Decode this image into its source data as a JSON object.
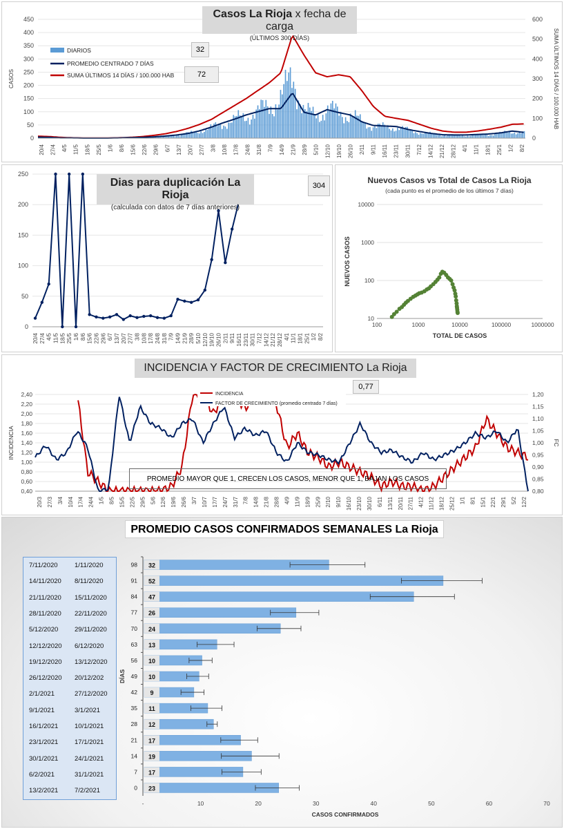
{
  "panel1": {
    "title_main": "Casos La Rioja",
    "title_rest": " x fecha de carga",
    "subtitle": "(ÚLTIMOS 300 DÍAS)",
    "ylabel_left": "CASOS",
    "ylabel_right": "SUMA ÚLTIMOS 14 DÍAS / 100.000 HAB",
    "legend": [
      "DIARIOS",
      "PROMEDIO CENTRADO 7 DÍAS",
      "SUMA ÚLTIMOS 14 DÍAS / 100.000 HAB"
    ],
    "value_box_1": "32",
    "value_box_2": "72",
    "left_ticks": [
      "0",
      "50",
      "100",
      "150",
      "200",
      "250",
      "300",
      "350",
      "400",
      "450"
    ],
    "right_ticks": [
      "0",
      "100",
      "200",
      "300",
      "400",
      "500",
      "600"
    ],
    "x_labels": [
      "20/4",
      "27/4",
      "4/5",
      "11/5",
      "18/5",
      "25/5",
      "1/6",
      "8/6",
      "15/6",
      "22/6",
      "29/6",
      "6/7",
      "13/7",
      "20/7",
      "27/7",
      "3/8",
      "10/8",
      "17/8",
      "24/8",
      "31/8",
      "7/9",
      "14/9",
      "21/9",
      "28/9",
      "5/10",
      "12/10",
      "19/10",
      "26/10",
      "2/11",
      "9/11",
      "16/11",
      "23/11",
      "30/11",
      "7/12",
      "14/12",
      "21/12",
      "28/12",
      "4/1",
      "11/1",
      "18/1",
      "25/1",
      "1/2",
      "8/2"
    ],
    "colors": {
      "daily": "#5b9bd5",
      "avg": "#002060",
      "sum14": "#c00000"
    }
  },
  "panel2": {
    "title": "Dias para duplicación La Rioja",
    "subtitle": "(calculada con datos de 7 días anteriores)",
    "value_box": "304",
    "y_ticks": [
      "0",
      "50",
      "100",
      "150",
      "200",
      "250"
    ],
    "x_labels": [
      "20/4",
      "27/4",
      "4/5",
      "11/5",
      "18/5",
      "25/5",
      "1/6",
      "8/6",
      "15/6",
      "22/6",
      "29/6",
      "6/7",
      "13/7",
      "20/7",
      "27/7",
      "3/8",
      "10/8",
      "17/8",
      "24/8",
      "31/8",
      "7/9",
      "14/9",
      "21/9",
      "28/9",
      "5/10",
      "12/10",
      "19/10",
      "26/10",
      "2/11",
      "9/11",
      "16/11",
      "23/11",
      "30/11",
      "7/12",
      "14/12",
      "21/12",
      "28/12",
      "4/1",
      "11/1",
      "18/1",
      "25/1",
      "1/2",
      "8/2"
    ]
  },
  "panel3": {
    "title": "Nuevos Casos vs Total de Casos La Rioja",
    "subtitle": "(cada punto es el promedio de los últimos 7 días)",
    "ylabel": "NUEVOS CASOS",
    "xlabel": "TOTAL DE CASOS",
    "y_ticks": [
      "10",
      "100",
      "1000",
      "10000"
    ],
    "x_ticks": [
      "100",
      "1000",
      "10000",
      "100000",
      "1000000"
    ]
  },
  "panel4": {
    "title_main": "INCIDENCIA Y FACTOR DE CRECIMIENTO",
    "title_rest": " La Rioja",
    "legend": [
      "INCIDENCIA",
      "FACTOR DE CRECIMIENTO (promedio centrado 7 días)"
    ],
    "value_box": "0,77",
    "ylabel_left": "INCIDENCIA",
    "ylabel_right": "FC",
    "note": "PROMEDIO MAYOR QUE 1, CRECEN LOS CASOS, MENOR QUE 1, BAJAN LOS CASOS",
    "left_ticks": [
      "0,40",
      "0,60",
      "0,80",
      "1,00",
      "1,20",
      "1,40",
      "1,60",
      "1,80",
      "2,00",
      "2,20",
      "2,40"
    ],
    "right_ticks": [
      "0,80",
      "0,85",
      "0,90",
      "0,95",
      "1,00",
      "1,05",
      "1,10",
      "1,15",
      "1,20"
    ],
    "x_labels": [
      "20/3",
      "27/3",
      "3/4",
      "10/4",
      "17/4",
      "24/4",
      "1/5",
      "8/5",
      "15/5",
      "22/5",
      "29/5",
      "5/6",
      "12/6",
      "19/6",
      "26/6",
      "3/7",
      "10/7",
      "17/7",
      "24/7",
      "31/7",
      "7/8",
      "14/8",
      "21/8",
      "28/8",
      "4/9",
      "11/9",
      "18/9",
      "25/9",
      "2/10",
      "9/10",
      "16/10",
      "23/10",
      "30/10",
      "6/11",
      "13/11",
      "20/11",
      "27/11",
      "4/12",
      "11/12",
      "18/12",
      "25/12",
      "1/1",
      "8/1",
      "15/1",
      "22/1",
      "29/1",
      "5/2",
      "12/2"
    ]
  },
  "panel5": {
    "title": "PROMEDIO CASOS CONFIRMADOS SEMANALES La Rioja",
    "ylabel": "DÍAS",
    "table_rows": [
      [
        "7/11/2020",
        "1/11/2020"
      ],
      [
        "14/11/2020",
        "8/11/2020"
      ],
      [
        "21/11/2020",
        "15/11/2020"
      ],
      [
        "28/11/2020",
        "22/11/2020"
      ],
      [
        "5/12/2020",
        "29/11/2020"
      ],
      [
        "12/12/2020",
        "6/12/2020"
      ],
      [
        "19/12/2020",
        "13/12/2020"
      ],
      [
        "26/12/2020",
        "20/12/202"
      ],
      [
        "2/1/2021",
        "27/12/2020"
      ],
      [
        "9/1/2021",
        "3/1/2021"
      ],
      [
        "16/1/2021",
        "10/1/2021"
      ],
      [
        "23/1/2021",
        "17/1/2021"
      ],
      [
        "30/1/2021",
        "24/1/2021"
      ],
      [
        "6/2/2021",
        "31/1/2021"
      ],
      [
        "13/2/2021",
        "7/2/2021"
      ]
    ]
  },
  "chart_data": [
    {
      "type": "bar",
      "title": "Casos La Rioja x fecha de carga",
      "subtitle": "(ÚLTIMOS 300 DÍAS)",
      "ylabel": "CASOS",
      "ylabel_right": "SUMA ÚLTIMOS 14 DÍAS / 100.000 HAB",
      "ylim": [
        0,
        450
      ],
      "ylim_right": [
        0,
        600
      ],
      "legend_position": "top-left",
      "series": [
        {
          "name": "DIARIOS",
          "type": "bar",
          "axis": "left",
          "x": [
            "20/4",
            "27/4",
            "4/5",
            "11/5",
            "18/5",
            "25/5",
            "1/6",
            "8/6",
            "15/6",
            "22/6",
            "29/6",
            "6/7",
            "13/7",
            "20/7",
            "27/7",
            "3/8",
            "10/8",
            "17/8",
            "24/8",
            "31/8",
            "7/9",
            "14/9",
            "21/9",
            "28/9",
            "5/10",
            "12/10",
            "19/10",
            "26/10",
            "2/11",
            "9/11",
            "16/11",
            "23/11",
            "30/11",
            "7/12",
            "14/12",
            "21/12",
            "28/12",
            "4/1",
            "11/1",
            "18/1",
            "25/1",
            "1/2",
            "8/2"
          ],
          "values": [
            4,
            3,
            1,
            1,
            0,
            0,
            0,
            1,
            2,
            3,
            5,
            8,
            12,
            18,
            28,
            40,
            55,
            70,
            85,
            100,
            125,
            150,
            240,
            100,
            85,
            110,
            95,
            88,
            60,
            45,
            42,
            40,
            30,
            22,
            16,
            12,
            10,
            10,
            12,
            14,
            18,
            25,
            20
          ]
        },
        {
          "name": "PROMEDIO CENTRADO 7 DÍAS",
          "type": "line",
          "axis": "left",
          "x": [
            "20/4",
            "27/4",
            "4/5",
            "11/5",
            "18/5",
            "25/5",
            "1/6",
            "8/6",
            "15/6",
            "22/6",
            "29/6",
            "6/7",
            "13/7",
            "20/7",
            "27/7",
            "3/8",
            "10/8",
            "17/8",
            "24/8",
            "31/8",
            "7/9",
            "14/9",
            "21/9",
            "28/9",
            "5/10",
            "12/10",
            "19/10",
            "26/10",
            "2/11",
            "9/11",
            "16/11",
            "23/11",
            "30/11",
            "7/12",
            "14/12",
            "21/12",
            "28/12",
            "4/1",
            "11/1",
            "18/1",
            "25/1",
            "1/2",
            "8/2"
          ],
          "values": [
            4,
            3,
            1,
            1,
            0,
            0,
            0,
            1,
            2,
            3,
            5,
            8,
            12,
            18,
            28,
            42,
            58,
            72,
            88,
            100,
            112,
            112,
            172,
            98,
            88,
            108,
            97,
            88,
            62,
            48,
            46,
            44,
            33,
            25,
            18,
            13,
            12,
            12,
            14,
            16,
            20,
            27,
            22
          ]
        },
        {
          "name": "SUMA ÚLTIMOS 14 DÍAS / 100.000 HAB",
          "type": "line",
          "axis": "right",
          "x": [
            "20/4",
            "27/4",
            "4/5",
            "11/5",
            "18/5",
            "25/5",
            "1/6",
            "8/6",
            "15/6",
            "22/6",
            "29/6",
            "6/7",
            "13/7",
            "20/7",
            "27/7",
            "3/8",
            "10/8",
            "17/8",
            "24/8",
            "31/8",
            "7/9",
            "14/9",
            "21/9",
            "28/9",
            "5/10",
            "12/10",
            "19/10",
            "26/10",
            "2/11",
            "9/11",
            "16/11",
            "23/11",
            "30/11",
            "7/12",
            "14/12",
            "21/12",
            "28/12",
            "4/1",
            "11/1",
            "18/1",
            "25/1",
            "1/2",
            "8/2"
          ],
          "values": [
            10,
            8,
            4,
            2,
            1,
            1,
            1,
            2,
            4,
            8,
            14,
            22,
            34,
            50,
            70,
            95,
            130,
            165,
            200,
            240,
            280,
            330,
            520,
            420,
            330,
            310,
            320,
            310,
            240,
            160,
            110,
            100,
            90,
            70,
            50,
            36,
            30,
            30,
            36,
            45,
            55,
            70,
            72
          ]
        }
      ]
    },
    {
      "type": "line",
      "title": "Dias para duplicación La Rioja",
      "subtitle": "(calculada con datos de 7 días anteriores)",
      "ylim": [
        0,
        250
      ],
      "series": [
        {
          "name": "",
          "x": [
            "20/4",
            "27/4",
            "4/5",
            "11/5",
            "18/5",
            "25/5",
            "1/6",
            "8/6",
            "15/6",
            "22/6",
            "29/6",
            "6/7",
            "13/7",
            "20/7",
            "27/7",
            "3/8",
            "10/8",
            "17/8",
            "24/8",
            "31/8",
            "7/9",
            "14/9",
            "21/9",
            "28/9",
            "5/10",
            "12/10",
            "19/10",
            "26/10",
            "2/11",
            "9/11",
            "16/11",
            "23/11",
            "30/11"
          ],
          "values": [
            14,
            40,
            70,
            250,
            0,
            250,
            0,
            250,
            20,
            16,
            14,
            16,
            20,
            12,
            18,
            15,
            17,
            18,
            15,
            14,
            18,
            45,
            42,
            40,
            44,
            60,
            110,
            190,
            105,
            160,
            205,
            null,
            null
          ]
        }
      ]
    },
    {
      "type": "scatter",
      "title": "Nuevos Casos vs Total de Casos La Rioja",
      "subtitle": "(cada punto es el promedio de los últimos 7 días)",
      "xlabel": "TOTAL DE CASOS",
      "ylabel": "NUEVOS CASOS",
      "x_scale": "log",
      "y_scale": "log",
      "xlim": [
        100,
        1000000
      ],
      "ylim": [
        10,
        10000
      ],
      "series": [
        {
          "name": "",
          "x": [
            230,
            260,
            300,
            350,
            400,
            450,
            500,
            560,
            650,
            750,
            850,
            950,
            1050,
            1200,
            1400,
            1600,
            1800,
            2000,
            2300,
            2600,
            2900,
            3200,
            3500,
            3800,
            4200,
            4700,
            5200,
            5700,
            6200,
            6700,
            7100,
            7500,
            7800,
            8000,
            8200,
            8400,
            8500,
            8600,
            8700,
            8800,
            8900
          ],
          "y": [
            11,
            13,
            15,
            18,
            20,
            23,
            26,
            29,
            33,
            37,
            40,
            43,
            46,
            48,
            52,
            58,
            62,
            70,
            80,
            92,
            105,
            120,
            150,
            170,
            160,
            140,
            120,
            110,
            100,
            80,
            65,
            55,
            45,
            38,
            30,
            25,
            21,
            19,
            17,
            15,
            14
          ]
        }
      ]
    },
    {
      "type": "line",
      "title": "INCIDENCIA Y FACTOR DE CRECIMIENTO La Rioja",
      "ylabel": "INCIDENCIA",
      "ylabel_right": "FC",
      "ylim": [
        0.4,
        2.4
      ],
      "ylim_right": [
        0.8,
        1.2
      ],
      "series": [
        {
          "name": "INCIDENCIA",
          "axis": "left",
          "x": [
            "20/3",
            "27/3",
            "3/4",
            "10/4",
            "17/4",
            "24/4",
            "1/5",
            "8/5",
            "15/5",
            "22/5",
            "29/5",
            "5/6",
            "12/6",
            "19/6",
            "26/6",
            "3/7",
            "10/7",
            "17/7",
            "24/7",
            "31/7",
            "7/8",
            "14/8",
            "21/8",
            "28/8",
            "4/9",
            "11/9",
            "18/9",
            "25/9",
            "2/10",
            "9/10",
            "16/10",
            "23/10",
            "30/10",
            "6/11",
            "13/11",
            "20/11",
            "27/11",
            "4/12",
            "11/12",
            "18/12",
            "25/12",
            "1/1",
            "8/1",
            "15/1",
            "22/1",
            "29/1",
            "5/2",
            "12/2"
          ],
          "values": [
            null,
            null,
            null,
            null,
            2.4,
            0.8,
            0.6,
            0.4,
            0.4,
            0.4,
            0.4,
            0.4,
            0.4,
            0.5,
            0.9,
            2.4,
            2.4,
            2.0,
            2.4,
            2.4,
            2.1,
            2.4,
            2.4,
            2.2,
            1.3,
            1.6,
            1.2,
            1.1,
            0.9,
            1.0,
            0.9,
            0.8,
            0.7,
            0.5,
            0.6,
            0.5,
            0.5,
            0.4,
            0.5,
            0.7,
            0.9,
            1.1,
            1.3,
            1.9,
            1.6,
            1.3,
            1.2,
            1.1
          ]
        },
        {
          "name": "FACTOR DE CRECIMIENTO (promedio centrado 7 días)",
          "axis": "right",
          "x": [
            "20/3",
            "27/3",
            "3/4",
            "10/4",
            "17/4",
            "24/4",
            "1/5",
            "8/5",
            "15/5",
            "22/5",
            "29/5",
            "5/6",
            "12/6",
            "19/6",
            "26/6",
            "3/7",
            "10/7",
            "17/7",
            "24/7",
            "31/7",
            "7/8",
            "14/8",
            "21/8",
            "28/8",
            "4/9",
            "11/9",
            "18/9",
            "25/9",
            "2/10",
            "9/10",
            "16/10",
            "23/10",
            "30/10",
            "6/11",
            "13/11",
            "20/11",
            "27/11",
            "4/12",
            "11/12",
            "18/12",
            "25/12",
            "1/1",
            "8/1",
            "15/1",
            "22/1",
            "29/1",
            "5/2",
            "12/2"
          ],
          "values": [
            0.94,
            0.99,
            0.93,
            0.96,
            1.05,
            0.98,
            0.8,
            0.81,
            1.2,
            1.0,
            1.15,
            1.08,
            1.06,
            1.02,
            1.08,
            1.1,
            1.0,
            1.08,
            1.15,
            1.02,
            1.06,
            1.03,
            1.05,
            0.96,
            0.92,
            1.0,
            0.96,
            0.95,
            0.93,
            0.92,
            1.0,
            1.08,
            1.0,
            0.96,
            0.97,
            0.94,
            0.92,
            0.96,
            0.93,
            0.95,
            0.97,
            1.0,
            1.04,
            1.02,
            1.05,
            1.0,
            1.06,
            0.8
          ]
        }
      ],
      "annotation": "PROMEDIO MAYOR QUE 1, CRECEN LOS CASOS, MENOR QUE 1, BAJAN LOS CASOS"
    },
    {
      "type": "bar",
      "orientation": "horizontal",
      "title": "PROMEDIO CASOS CONFIRMADOS SEMANALES La Rioja",
      "xlabel": "CASOS CONFIRMADOS",
      "ylabel": "DÍAS",
      "xlim": [
        0,
        70
      ],
      "x_ticks": [
        "-",
        "10",
        "20",
        "30",
        "40",
        "50",
        "60",
        "70"
      ],
      "categories": [
        "98",
        "91",
        "84",
        "77",
        "70",
        "63",
        "56",
        "49",
        "42",
        "35",
        "28",
        "21",
        "14",
        "7",
        "0"
      ],
      "labels": [
        "32",
        "52",
        "47",
        "26",
        "24",
        "13",
        "10",
        "10",
        "9",
        "11",
        "12",
        "17",
        "19",
        "17",
        "23"
      ],
      "values": [
        32.0,
        51.8,
        46.7,
        26.3,
        23.6,
        12.6,
        10.0,
        9.5,
        8.6,
        11.0,
        12.0,
        16.7,
        18.6,
        17.1,
        23.3
      ],
      "error": [
        6.5,
        7.0,
        7.3,
        4.2,
        3.8,
        3.2,
        2.0,
        1.9,
        2.0,
        2.7,
        0.9,
        3.2,
        5.0,
        3.4,
        3.8
      ]
    }
  ]
}
